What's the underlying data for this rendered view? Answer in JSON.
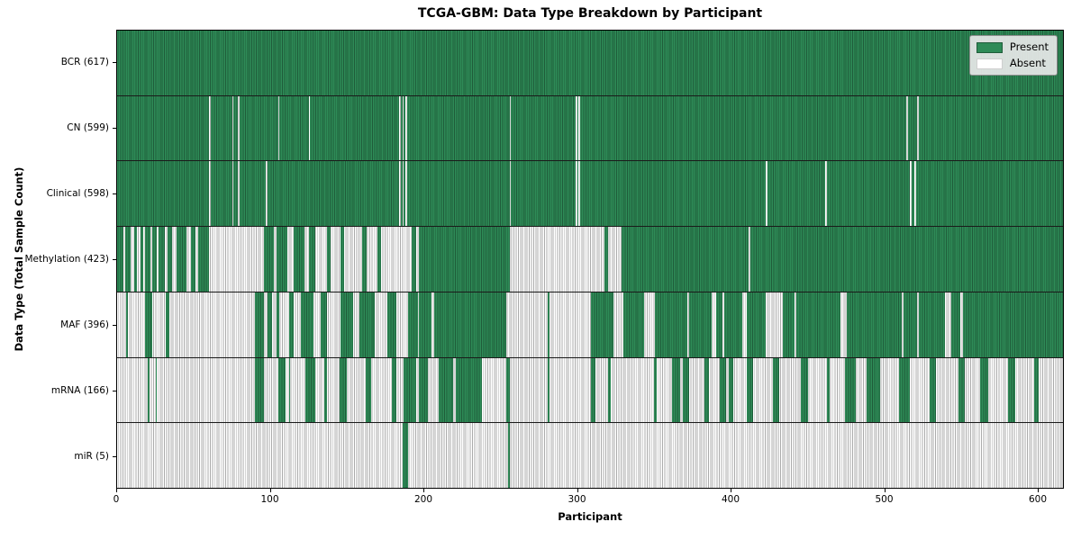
{
  "title": "TCGA-GBM: Data Type Breakdown by Participant",
  "chart_data": {
    "type": "heatmap",
    "title": "TCGA-GBM: Data Type Breakdown by Participant",
    "xlabel": "Participant",
    "ylabel": "Data Type (Total Sample Count)",
    "x_ticks": [
      0,
      100,
      200,
      300,
      400,
      500,
      600
    ],
    "x_max": 617,
    "grid": false,
    "legend_position": "upper right",
    "legend": {
      "present_label": "Present",
      "absent_label": "Absent"
    },
    "colors": {
      "present_fill": "#2e8b57",
      "present_stripe": "#1f5c3a",
      "absent_fill": "#ffffff",
      "absent_stripe": "#ababab",
      "row_divider": "#1a1a1a",
      "legend_bg": "#e8e8e8"
    },
    "rows": [
      {
        "data_type": "BCR",
        "label": "BCR (617)",
        "total": 617,
        "present_ranges": [
          [
            0,
            617
          ]
        ]
      },
      {
        "data_type": "CN",
        "label": "CN (599)",
        "total": 599,
        "present_ranges": [
          [
            0,
            60
          ],
          [
            61,
            75
          ],
          [
            76,
            79
          ],
          [
            80,
            105
          ],
          [
            106,
            125
          ],
          [
            126,
            184
          ],
          [
            185,
            186
          ],
          [
            187,
            188
          ],
          [
            189,
            256
          ],
          [
            257,
            299
          ],
          [
            300,
            301
          ],
          [
            302,
            515
          ],
          [
            516,
            522
          ],
          [
            523,
            617
          ]
        ]
      },
      {
        "data_type": "Clinical",
        "label": "Clinical (598)",
        "total": 598,
        "present_ranges": [
          [
            0,
            60
          ],
          [
            61,
            75
          ],
          [
            76,
            79
          ],
          [
            80,
            97
          ],
          [
            98,
            184
          ],
          [
            185,
            186
          ],
          [
            187,
            188
          ],
          [
            189,
            256
          ],
          [
            257,
            299
          ],
          [
            300,
            301
          ],
          [
            302,
            423
          ],
          [
            424,
            462
          ],
          [
            463,
            517
          ],
          [
            518,
            520
          ],
          [
            521,
            617
          ]
        ]
      },
      {
        "data_type": "Methylation",
        "label": "Methylation (423)",
        "total": 423,
        "present_ranges": [
          [
            0,
            4
          ],
          [
            5,
            9
          ],
          [
            11,
            13
          ],
          [
            15,
            17
          ],
          [
            18,
            22
          ],
          [
            23,
            26
          ],
          [
            27,
            31
          ],
          [
            33,
            36
          ],
          [
            39,
            45
          ],
          [
            48,
            51
          ],
          [
            53,
            60
          ],
          [
            96,
            102
          ],
          [
            104,
            111
          ],
          [
            115,
            122
          ],
          [
            125,
            129
          ],
          [
            137,
            139
          ],
          [
            146,
            148
          ],
          [
            160,
            163
          ],
          [
            170,
            172
          ],
          [
            192,
            195
          ],
          [
            197,
            256
          ],
          [
            318,
            320
          ],
          [
            329,
            412
          ],
          [
            413,
            617
          ]
        ]
      },
      {
        "data_type": "MAF",
        "label": "MAF (396)",
        "total": 396,
        "present_ranges": [
          [
            6,
            7
          ],
          [
            18,
            23
          ],
          [
            32,
            34
          ],
          [
            90,
            96
          ],
          [
            98,
            101
          ],
          [
            104,
            106
          ],
          [
            112,
            115
          ],
          [
            120,
            128
          ],
          [
            133,
            137
          ],
          [
            146,
            154
          ],
          [
            158,
            168
          ],
          [
            176,
            182
          ],
          [
            190,
            196
          ],
          [
            197,
            205
          ],
          [
            207,
            254
          ],
          [
            281,
            282
          ],
          [
            309,
            324
          ],
          [
            330,
            344
          ],
          [
            351,
            372
          ],
          [
            373,
            388
          ],
          [
            391,
            395
          ],
          [
            396,
            408
          ],
          [
            411,
            423
          ],
          [
            434,
            442
          ],
          [
            443,
            472
          ],
          [
            476,
            512
          ],
          [
            513,
            522
          ],
          [
            523,
            540
          ],
          [
            544,
            550
          ],
          [
            552,
            617
          ]
        ]
      },
      {
        "data_type": "mRNA",
        "label": "mRNA (166)",
        "total": 166,
        "present_ranges": [
          [
            20,
            21
          ],
          [
            25,
            26
          ],
          [
            90,
            96
          ],
          [
            105,
            110
          ],
          [
            112,
            113
          ],
          [
            123,
            129
          ],
          [
            135,
            137
          ],
          [
            145,
            150
          ],
          [
            162,
            166
          ],
          [
            179,
            182
          ],
          [
            187,
            195
          ],
          [
            197,
            203
          ],
          [
            210,
            219
          ],
          [
            221,
            238
          ],
          [
            254,
            256
          ],
          [
            281,
            282
          ],
          [
            309,
            312
          ],
          [
            320,
            322
          ],
          [
            350,
            352
          ],
          [
            362,
            367
          ],
          [
            369,
            373
          ],
          [
            383,
            386
          ],
          [
            393,
            397
          ],
          [
            399,
            402
          ],
          [
            411,
            415
          ],
          [
            428,
            432
          ],
          [
            446,
            451
          ],
          [
            463,
            465
          ],
          [
            475,
            482
          ],
          [
            489,
            498
          ],
          [
            510,
            517
          ],
          [
            530,
            534
          ],
          [
            549,
            553
          ],
          [
            563,
            568
          ],
          [
            581,
            586
          ],
          [
            598,
            601
          ]
        ]
      },
      {
        "data_type": "miR",
        "label": "miR (5)",
        "total": 5,
        "present_ranges": [
          [
            186,
            190
          ],
          [
            255,
            256
          ]
        ]
      }
    ]
  }
}
